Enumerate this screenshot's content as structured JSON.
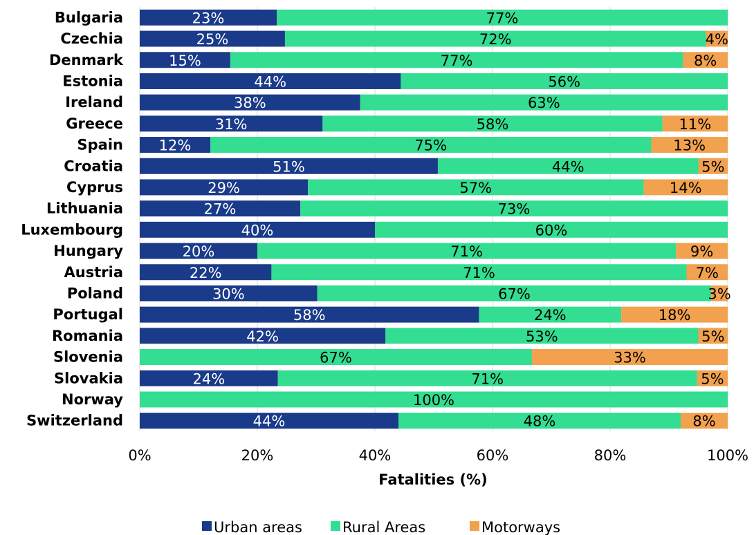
{
  "chart_data": {
    "type": "bar",
    "orientation": "horizontal",
    "stacked": "percent",
    "categories": [
      "Bulgaria",
      "Czechia",
      "Denmark",
      "Estonia",
      "Ireland",
      "Greece",
      "Spain",
      "Croatia",
      "Cyprus",
      "Lithuania",
      "Luxembourg",
      "Hungary",
      "Austria",
      "Poland",
      "Portugal",
      "Romania",
      "Slovenia",
      "Slovakia",
      "Norway",
      "Switzerland"
    ],
    "series": [
      {
        "name": "Urban areas",
        "color": "#1a3a8a",
        "label_color": "#ffffff",
        "values": [
          23.3,
          24.7,
          15.4,
          44.4,
          37.5,
          31.1,
          12.0,
          50.7,
          28.6,
          27.3,
          40.0,
          20.0,
          22.4,
          30.2,
          57.7,
          41.8,
          0,
          23.5,
          0,
          44.0
        ],
        "labels": [
          "23%",
          "25%",
          "15%",
          "44%",
          "38%",
          "31%",
          "12%",
          "51%",
          "29%",
          "27%",
          "40%",
          "20%",
          "22%",
          "30%",
          "58%",
          "42%",
          "",
          "24%",
          "",
          "44%"
        ]
      },
      {
        "name": "Rural Areas",
        "color": "#33dd91",
        "label_color": "#000000",
        "values": [
          76.7,
          71.6,
          77.0,
          55.6,
          62.5,
          57.8,
          75.0,
          44.3,
          57.1,
          72.7,
          60.0,
          71.2,
          70.6,
          67.0,
          24.2,
          53.2,
          66.7,
          71.3,
          100,
          48.0
        ],
        "labels": [
          "77%",
          "72%",
          "77%",
          "56%",
          "63%",
          "58%",
          "75%",
          "44%",
          "57%",
          "73%",
          "60%",
          "71%",
          "71%",
          "67%",
          "24%",
          "53%",
          "67%",
          "71%",
          "100%",
          "48%"
        ]
      },
      {
        "name": "Motorways",
        "color": "#f2a14e",
        "label_color": "#000000",
        "values": [
          0,
          3.7,
          7.6,
          0,
          0,
          11.1,
          13.0,
          5.0,
          14.3,
          0,
          0,
          8.8,
          7.0,
          2.8,
          18.1,
          5.0,
          33.3,
          5.2,
          0,
          8.0
        ],
        "labels": [
          "",
          "4%",
          "8%",
          "",
          "",
          "11%",
          "13%",
          "5%",
          "14%",
          "",
          "",
          "9%",
          "7%",
          "3%",
          "18%",
          "5%",
          "33%",
          "5%",
          "",
          "8%"
        ]
      }
    ],
    "xlabel": "Fatalities (%)",
    "xlim": [
      0,
      100
    ],
    "x_ticks": [
      "0%",
      "20%",
      "40%",
      "60%",
      "80%",
      "100%"
    ],
    "grid": "vertical",
    "legend": "bottom"
  }
}
